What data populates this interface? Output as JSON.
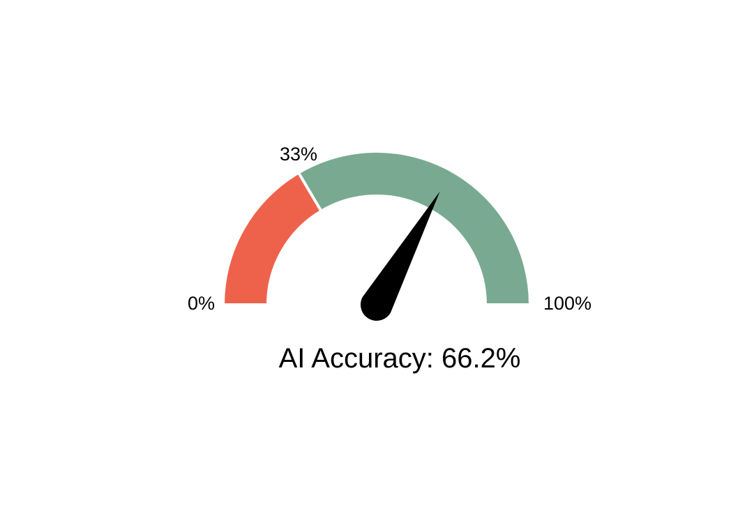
{
  "chart_data": {
    "type": "gauge",
    "min": 0,
    "max": 100,
    "value": 66.2,
    "unit": "%",
    "segments": [
      {
        "from": 0,
        "to": 33,
        "color": "#ee624c"
      },
      {
        "from": 33,
        "to": 100,
        "color": "#79aa91"
      }
    ],
    "tick_labels": [
      {
        "value": 0,
        "label": "0%"
      },
      {
        "value": 33,
        "label": "33%"
      },
      {
        "value": 100,
        "label": "100%"
      }
    ],
    "title": "AI Accuracy: 66.2%",
    "needle_color": "#000000"
  }
}
